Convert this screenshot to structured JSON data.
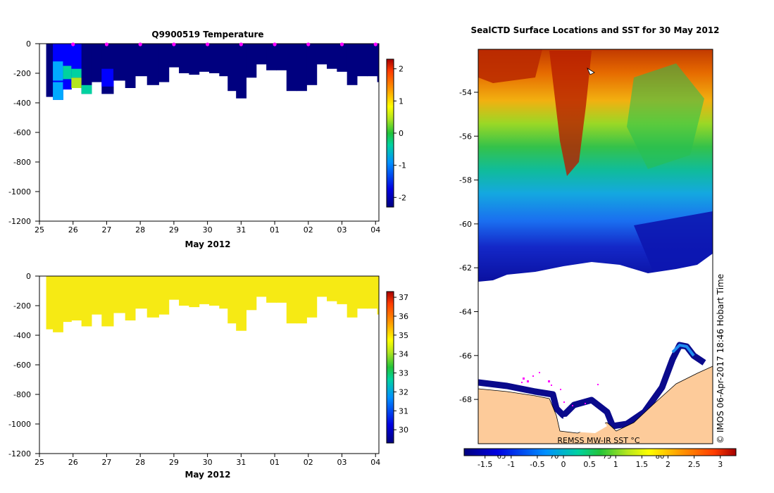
{
  "chart_data": [
    {
      "type": "heatmap",
      "title": "Q9900519  Temperature",
      "xlabel": "May 2012",
      "ylabel": "",
      "xticks": [
        "25",
        "26",
        "27",
        "28",
        "29",
        "30",
        "31",
        "01",
        "02",
        "03",
        "04"
      ],
      "yticks": [
        0,
        -200,
        -400,
        -600,
        -800,
        -1000,
        -1200
      ],
      "ylim": [
        -1200,
        0
      ],
      "colorbar": {
        "ticks": [
          2,
          1,
          0,
          -1,
          -2
        ],
        "range": [
          -2.3,
          2.3
        ]
      },
      "cmap": [
        "#00007f",
        "#0000ff",
        "#00aaff",
        "#00d2a0",
        "#22c33a",
        "#b4e61e",
        "#ffff00",
        "#ff9600",
        "#ff3c00",
        "#a50000"
      ],
      "profile_markers_day": [
        26,
        27,
        28,
        29,
        30,
        31,
        32,
        33,
        34,
        35
      ],
      "profiles": [
        {
          "day": 25.2,
          "depth": 360,
          "temp": -1.9,
          "warm": []
        },
        {
          "day": 25.4,
          "depth": 380,
          "temp": -1.8,
          "warm": [
            [
              120,
              250,
              -1.3
            ],
            [
              260,
              380,
              -1.0
            ]
          ]
        },
        {
          "day": 25.7,
          "depth": 310,
          "temp": -1.8,
          "warm": [
            [
              150,
              240,
              -0.9
            ]
          ]
        },
        {
          "day": 25.95,
          "depth": 300,
          "temp": -1.8,
          "warm": [
            [
              170,
              230,
              -0.8
            ],
            [
              230,
              300,
              0.3
            ]
          ]
        },
        {
          "day": 26.25,
          "depth": 340,
          "temp": -1.9,
          "warm": [
            [
              280,
              340,
              -0.9
            ]
          ]
        },
        {
          "day": 26.55,
          "depth": 260,
          "temp": -1.9,
          "warm": []
        },
        {
          "day": 26.85,
          "depth": 340,
          "temp": -1.9,
          "warm": [
            [
              170,
              290,
              -1.7
            ]
          ]
        },
        {
          "day": 27.2,
          "depth": 250,
          "temp": -1.9,
          "warm": []
        },
        {
          "day": 27.55,
          "depth": 300,
          "temp": -2.0,
          "warm": []
        },
        {
          "day": 27.85,
          "depth": 220,
          "temp": -2.0,
          "warm": []
        },
        {
          "day": 28.2,
          "depth": 280,
          "temp": -2.0,
          "warm": []
        },
        {
          "day": 28.55,
          "depth": 260,
          "temp": -2.0,
          "warm": []
        },
        {
          "day": 28.85,
          "depth": 160,
          "temp": -2.0,
          "warm": []
        },
        {
          "day": 29.15,
          "depth": 200,
          "temp": -2.0,
          "warm": []
        },
        {
          "day": 29.45,
          "depth": 210,
          "temp": -2.0,
          "warm": []
        },
        {
          "day": 29.75,
          "depth": 190,
          "temp": -2.0,
          "warm": []
        },
        {
          "day": 30.05,
          "depth": 200,
          "temp": -2.0,
          "warm": []
        },
        {
          "day": 30.35,
          "depth": 220,
          "temp": -2.0,
          "warm": []
        },
        {
          "day": 30.6,
          "depth": 320,
          "temp": -2.0,
          "warm": []
        },
        {
          "day": 30.85,
          "depth": 370,
          "temp": -2.0,
          "warm": []
        },
        {
          "day": 31.15,
          "depth": 230,
          "temp": -2.0,
          "warm": []
        },
        {
          "day": 31.45,
          "depth": 140,
          "temp": -2.0,
          "warm": []
        },
        {
          "day": 31.75,
          "depth": 180,
          "temp": -2.0,
          "warm": []
        },
        {
          "day": 32.05,
          "depth": 180,
          "temp": -2.0,
          "warm": []
        },
        {
          "day": 32.35,
          "depth": 320,
          "temp": -2.0,
          "warm": []
        },
        {
          "day": 32.65,
          "depth": 320,
          "temp": -2.0,
          "warm": []
        },
        {
          "day": 32.95,
          "depth": 280,
          "temp": -2.0,
          "warm": []
        },
        {
          "day": 33.25,
          "depth": 140,
          "temp": -2.0,
          "warm": []
        },
        {
          "day": 33.55,
          "depth": 170,
          "temp": -2.0,
          "warm": []
        },
        {
          "day": 33.85,
          "depth": 190,
          "temp": -2.0,
          "warm": []
        },
        {
          "day": 34.15,
          "depth": 280,
          "temp": -2.0,
          "warm": []
        },
        {
          "day": 34.45,
          "depth": 220,
          "temp": -2.0,
          "warm": []
        },
        {
          "day": 34.75,
          "depth": 220,
          "temp": -2.0,
          "warm": []
        },
        {
          "day": 35.05,
          "depth": 260,
          "temp": -2.0,
          "warm": []
        }
      ]
    },
    {
      "type": "heatmap",
      "title": "",
      "xlabel": "May 2012",
      "ylabel": "",
      "xticks": [
        "25",
        "26",
        "27",
        "28",
        "29",
        "30",
        "31",
        "01",
        "02",
        "03",
        "04"
      ],
      "yticks": [
        0,
        -200,
        -400,
        -600,
        -800,
        -1000,
        -1200
      ],
      "ylim": [
        -1200,
        0
      ],
      "colorbar": {
        "ticks": [
          37,
          36,
          35,
          34,
          33,
          32,
          31,
          30
        ],
        "range": [
          29.3,
          37.3
        ]
      },
      "field_value": 34.6,
      "field_color": "#f6ea14",
      "depths": [
        360,
        380,
        310,
        300,
        340,
        260,
        340,
        250,
        300,
        220,
        280,
        260,
        160,
        200,
        210,
        190,
        200,
        220,
        320,
        370,
        230,
        140,
        180,
        180,
        320,
        320,
        280,
        140,
        170,
        190,
        280,
        220,
        220,
        260
      ]
    },
    {
      "type": "heatmap",
      "title": "SealCTD Surface Locations and SST for 30 May 2012",
      "xlabel": "",
      "ylabel": "",
      "yticks": [
        "-54",
        "-56",
        "-58",
        "-60",
        "-62",
        "-64",
        "-66",
        "-68"
      ],
      "xticks_lon": [
        "65",
        "70",
        "75",
        "80"
      ],
      "colorbar": {
        "ticks": [
          "-1.5",
          "-1",
          "-0.5",
          "0",
          "0.5",
          "1",
          "1.5",
          "2",
          "2.5",
          "3"
        ],
        "range": [
          -1.9,
          3.3
        ]
      },
      "annotation": "REMSS MW-IR SST °C",
      "credit": "© IMOS 06-Apr-2017 18:46 Hobart Time"
    }
  ]
}
